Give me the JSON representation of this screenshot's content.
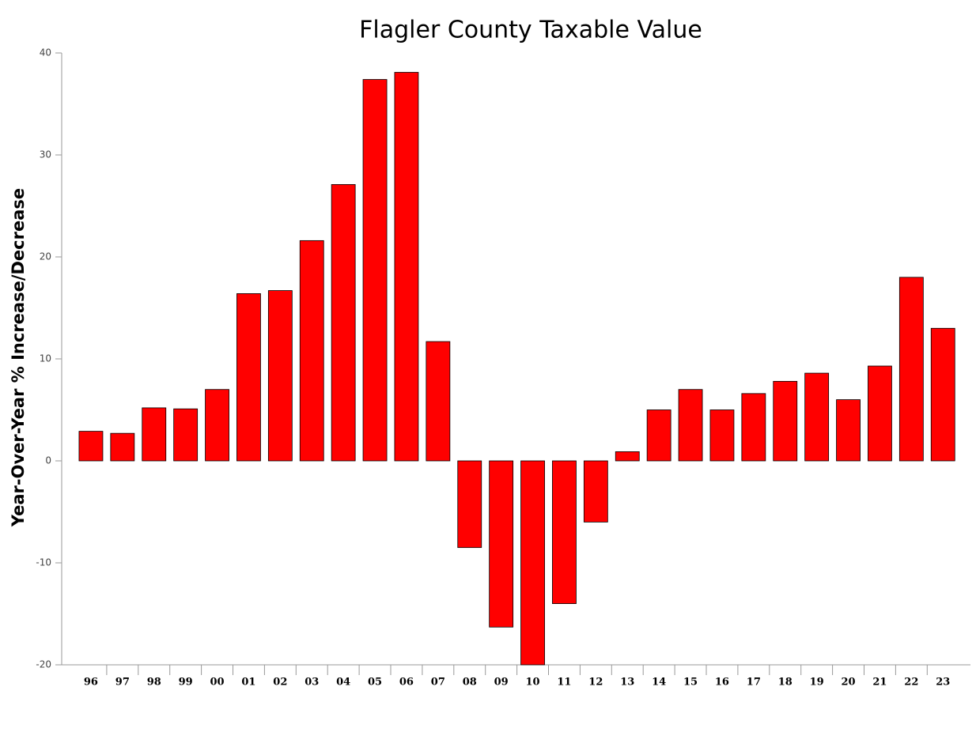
{
  "chart_data": {
    "type": "bar",
    "title": "Flagler County Taxable Value",
    "y_label": "Year-Over-Year % Increase/Decrease",
    "categories": [
      "96",
      "97",
      "98",
      "99",
      "00",
      "01",
      "02",
      "03",
      "04",
      "05",
      "06",
      "07",
      "08",
      "09",
      "10",
      "11",
      "12",
      "13",
      "14",
      "15",
      "16",
      "17",
      "18",
      "19",
      "20",
      "21",
      "22",
      "23"
    ],
    "values": [
      2.9,
      2.7,
      5.2,
      5.1,
      7.0,
      16.4,
      16.7,
      21.6,
      27.1,
      37.4,
      38.1,
      11.7,
      -8.5,
      -16.3,
      -20,
      -14.0,
      -6.0,
      0.9,
      5.0,
      7.0,
      5.0,
      6.6,
      7.8,
      8.6,
      6.0,
      9.3,
      18.0,
      13.0
    ],
    "color": "#ff0000",
    "ylim": [
      -20,
      40
    ],
    "yticks": [
      -20,
      -10,
      0,
      10,
      20,
      30,
      40
    ],
    "grid": false
  }
}
